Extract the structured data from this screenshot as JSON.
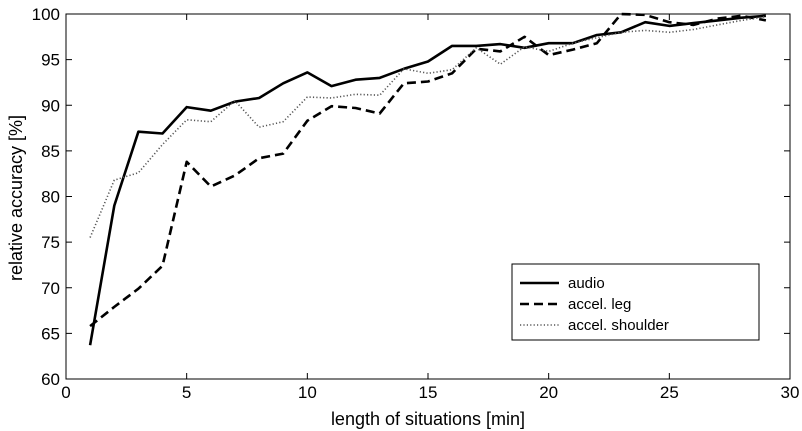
{
  "chart_data": {
    "type": "line",
    "xlabel": "length of situations [min]",
    "ylabel": "relative accuracy [%]",
    "xlim": [
      0,
      30
    ],
    "ylim": [
      60,
      100
    ],
    "xticks": [
      0,
      5,
      10,
      15,
      20,
      25,
      30
    ],
    "yticks": [
      60,
      65,
      70,
      75,
      80,
      85,
      90,
      95,
      100
    ],
    "grid": false,
    "legend_position": "bottom-right",
    "x": [
      1,
      2,
      3,
      4,
      5,
      6,
      7,
      8,
      9,
      10,
      11,
      12,
      13,
      14,
      15,
      16,
      17,
      18,
      19,
      20,
      21,
      22,
      23,
      24,
      25,
      26,
      27,
      28,
      29
    ],
    "series": [
      {
        "name": "audio",
        "style": "solid",
        "values": [
          63.7,
          79.0,
          87.1,
          86.9,
          89.8,
          89.4,
          90.4,
          90.8,
          92.4,
          93.6,
          92.1,
          92.8,
          93.0,
          94.0,
          94.8,
          96.5,
          96.5,
          96.7,
          96.3,
          96.8,
          96.8,
          97.7,
          98.0,
          99.1,
          98.7,
          99.0,
          99.3,
          99.6,
          99.8
        ]
      },
      {
        "name": "accel. leg",
        "style": "dashed",
        "values": [
          65.8,
          67.9,
          69.9,
          72.4,
          83.8,
          81.1,
          82.3,
          84.2,
          84.7,
          88.3,
          89.9,
          89.7,
          89.1,
          92.4,
          92.6,
          93.5,
          96.2,
          95.9,
          97.5,
          95.5,
          96.1,
          96.8,
          100.0,
          99.9,
          99.1,
          98.8,
          99.5,
          99.8,
          99.3
        ]
      },
      {
        "name": "accel. shoulder",
        "style": "dotted",
        "values": [
          75.5,
          81.8,
          82.6,
          85.7,
          88.4,
          88.2,
          90.5,
          87.6,
          88.2,
          90.9,
          90.8,
          91.2,
          91.1,
          94.0,
          93.5,
          93.9,
          96.3,
          94.5,
          96.4,
          95.9,
          96.8,
          97.4,
          98.0,
          98.2,
          98.0,
          98.3,
          98.8,
          99.3,
          99.7
        ]
      }
    ]
  }
}
